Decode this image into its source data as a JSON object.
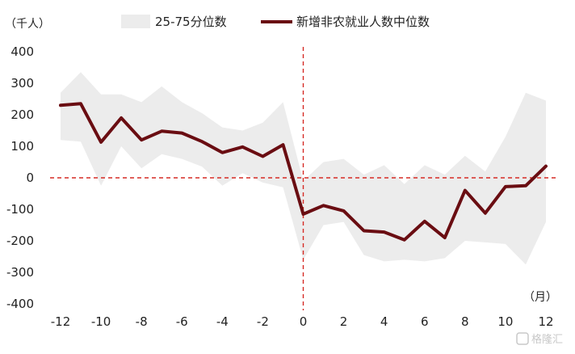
{
  "chart_data": {
    "type": "area",
    "y_unit_label": "（千人）",
    "x_unit_label": "（月）",
    "xlim": [
      -12,
      12
    ],
    "ylim": [
      -400,
      400
    ],
    "x_ticks": [
      -12,
      -10,
      -8,
      -6,
      -4,
      -2,
      0,
      2,
      4,
      6,
      8,
      10,
      12
    ],
    "y_ticks": [
      400,
      300,
      200,
      100,
      0,
      -100,
      -200,
      -300,
      -400
    ],
    "y_tick_labels": [
      "400",
      "300",
      "200",
      "100",
      "0",
      "-100",
      "-200",
      "-300",
      "-400"
    ],
    "x_tick_labels": [
      "-12",
      "-10",
      "-8",
      "-6",
      "-4",
      "-2",
      "0",
      "2",
      "4",
      "6",
      "8",
      "10",
      "12"
    ],
    "x": [
      -12,
      -11,
      -10,
      -9,
      -8,
      -7,
      -6,
      -5,
      -4,
      -3,
      -2,
      -1,
      0,
      1,
      2,
      3,
      4,
      5,
      6,
      7,
      8,
      9,
      10,
      11,
      12
    ],
    "series": [
      {
        "name": "25-75分位数",
        "kind": "band",
        "color": "#ececec",
        "upper": [
          270,
          335,
          265,
          265,
          240,
          290,
          240,
          205,
          160,
          150,
          175,
          240,
          -10,
          50,
          60,
          10,
          40,
          -20,
          40,
          10,
          70,
          20,
          130,
          270,
          245
        ],
        "lower": [
          120,
          115,
          -25,
          100,
          30,
          75,
          60,
          35,
          -25,
          15,
          -15,
          -30,
          -260,
          -150,
          -140,
          -245,
          -265,
          -260,
          -265,
          -255,
          -200,
          -205,
          -210,
          -275,
          -140
        ]
      },
      {
        "name": "新增非农就业人数中位数",
        "kind": "line",
        "color": "#6a0d12",
        "values": [
          230,
          235,
          113,
          190,
          120,
          148,
          142,
          115,
          80,
          98,
          68,
          105,
          -115,
          -88,
          -105,
          -168,
          -172,
          -197,
          -138,
          -190,
          -40,
          -112,
          -28,
          -25,
          37
        ]
      }
    ],
    "reference_lines": [
      {
        "axis": "y",
        "value": 0,
        "color": "#d62b25",
        "style": "dashed"
      },
      {
        "axis": "x",
        "value": 0,
        "color": "#d62b25",
        "style": "dashed"
      }
    ],
    "legend_position": "top",
    "grid": false
  },
  "watermark": {
    "text": "格隆汇"
  }
}
